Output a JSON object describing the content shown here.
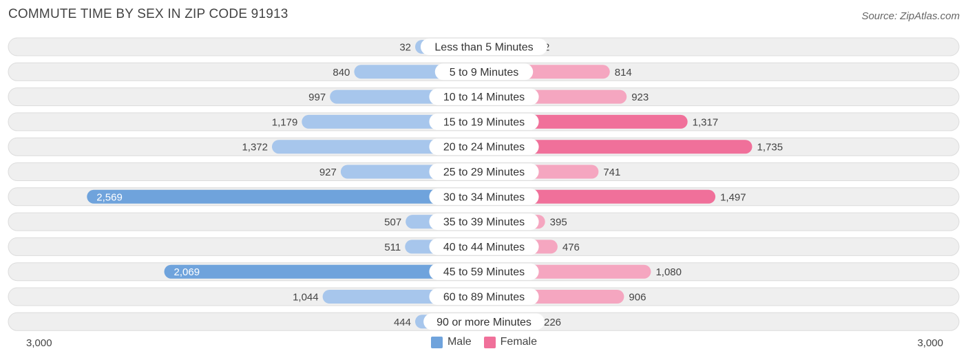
{
  "title": "COMMUTE TIME BY SEX IN ZIP CODE 91913",
  "source": "Source: ZipAtlas.com",
  "colors": {
    "male": "#6fa3dc",
    "male_light": "#a7c6ec",
    "female": "#f0709a",
    "female_light": "#f5a6c0",
    "row_bg": "#efefef",
    "row_border": "#dcdcdc"
  },
  "axis": {
    "left_label": "3,000",
    "right_label": "3,000"
  },
  "legend": {
    "male_label": "Male",
    "female_label": "Female"
  },
  "chart_data": {
    "type": "bar",
    "orientation": "horizontal-diverging",
    "xlim": [
      -3000,
      3000
    ],
    "categories": [
      "Less than 5 Minutes",
      "5 to 9 Minutes",
      "10 to 14 Minutes",
      "15 to 19 Minutes",
      "20 to 24 Minutes",
      "25 to 29 Minutes",
      "30 to 34 Minutes",
      "35 to 39 Minutes",
      "40 to 44 Minutes",
      "45 to 59 Minutes",
      "60 to 89 Minutes",
      "90 or more Minutes"
    ],
    "series": [
      {
        "name": "Male",
        "values": [
          32,
          840,
          997,
          1179,
          1372,
          927,
          2569,
          507,
          511,
          2069,
          1044,
          444
        ],
        "labels": [
          "32",
          "840",
          "997",
          "1,179",
          "1,372",
          "927",
          "2,569",
          "507",
          "511",
          "2,069",
          "1,044",
          "444"
        ]
      },
      {
        "name": "Female",
        "values": [
          2,
          814,
          923,
          1317,
          1735,
          741,
          1497,
          395,
          476,
          1080,
          906,
          226
        ],
        "labels": [
          "2",
          "814",
          "923",
          "1,317",
          "1,735",
          "741",
          "1,497",
          "395",
          "476",
          "1,080",
          "906",
          "226"
        ]
      }
    ],
    "legend_position": "bottom-center"
  }
}
